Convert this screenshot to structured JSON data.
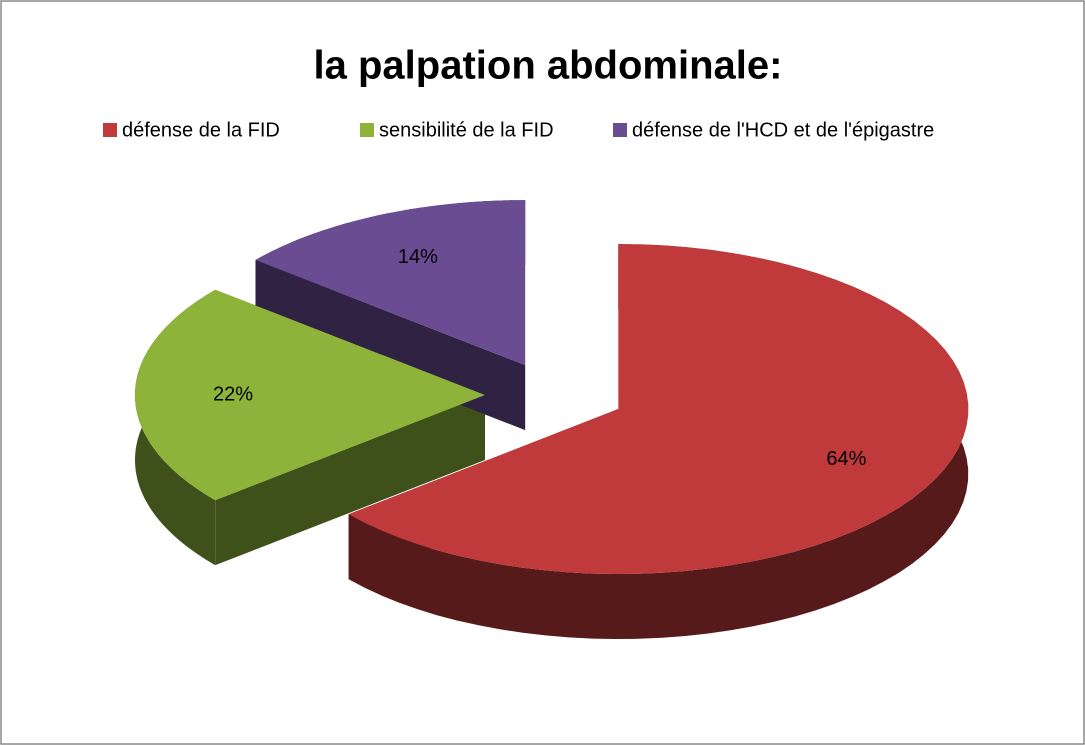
{
  "chart_data": {
    "type": "pie",
    "title": "la palpation abdominale:",
    "categories": [
      "défense de la FID",
      "sensibilité de la FID",
      "défense de l'HCD et de l'épigastre"
    ],
    "values": [
      64,
      22,
      14
    ],
    "value_labels": [
      "64%",
      "22%",
      "14%"
    ],
    "colors": [
      "#c0393b",
      "#8db33a",
      "#6a4c93"
    ],
    "legend": "top"
  }
}
